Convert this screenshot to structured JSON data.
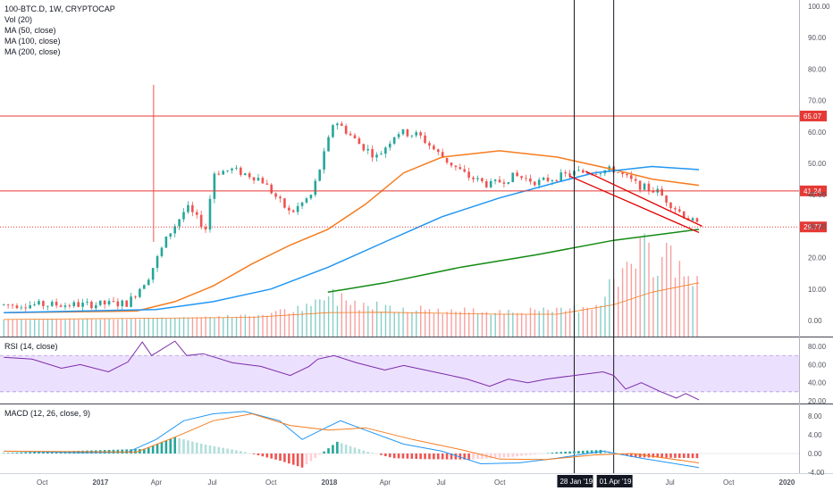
{
  "legend": {
    "title": "100-BTC.D, 1W, CRYPTOCAP",
    "vol": "Vol (20)",
    "ma50": "MA (50, close)",
    "ma100": "MA (100, close)",
    "ma200": "MA (200, close)"
  },
  "rsi_label": "RSI (14, close)",
  "macd_label": "MACD (12, 26, close, 9)",
  "colors": {
    "up": "#26a69a",
    "down": "#ef5350",
    "ma50": "#f57c1f",
    "ma100": "#2196f3",
    "ma200": "#138a13",
    "hline": "#e53935",
    "rsi": "#7b2ca8",
    "rsi_band": "#ece0ff",
    "macd": "#2196f3",
    "signal": "#f57c1f",
    "wedge": "#e10000"
  },
  "chart_data": [
    {
      "type": "candlestick",
      "title": "100-BTC.D, 1W, CRYPTOCAP",
      "ylim": [
        -2,
        101
      ],
      "y_ticks": [
        "100.00",
        "90.00",
        "80.00",
        "70.00",
        "60.00",
        "50.00",
        "40.00",
        "30.00",
        "20.00",
        "10.00",
        "0.00"
      ],
      "x_ticks": [
        "Oct",
        "2017",
        "Apr",
        "Jul",
        "Oct",
        "2018",
        "Apr",
        "Jul",
        "Oct",
        "2019",
        "Apr",
        "Jul",
        "Oct",
        "2020"
      ],
      "close_series": [
        {
          "x": "2016-08-01",
          "y": 5
        },
        {
          "x": "2016-12-01",
          "y": 5
        },
        {
          "x": "2017-02-15",
          "y": 5.5
        },
        {
          "x": "2017-03-20",
          "y": 14
        },
        {
          "x": "2017-04-20",
          "y": 27
        },
        {
          "x": "2017-05-20",
          "y": 36
        },
        {
          "x": "2017-06-20",
          "y": 29
        },
        {
          "x": "2017-07-01",
          "y": 47
        },
        {
          "x": "2017-08-01",
          "y": 48
        },
        {
          "x": "2017-09-15",
          "y": 45
        },
        {
          "x": "2017-11-01",
          "y": 34
        },
        {
          "x": "2017-12-05",
          "y": 40
        },
        {
          "x": "2017-12-30",
          "y": 56
        },
        {
          "x": "2018-01-10",
          "y": 64
        },
        {
          "x": "2018-02-20",
          "y": 56
        },
        {
          "x": "2018-03-20",
          "y": 52
        },
        {
          "x": "2018-04-20",
          "y": 60
        },
        {
          "x": "2018-05-25",
          "y": 59
        },
        {
          "x": "2018-07-01",
          "y": 52
        },
        {
          "x": "2018-08-10",
          "y": 46
        },
        {
          "x": "2018-09-15",
          "y": 43
        },
        {
          "x": "2018-10-25",
          "y": 46
        },
        {
          "x": "2018-12-01",
          "y": 44
        },
        {
          "x": "2019-01-28",
          "y": 47
        },
        {
          "x": "2019-04-01",
          "y": 48
        },
        {
          "x": "2019-05-10",
          "y": 43
        },
        {
          "x": "2019-06-10",
          "y": 41
        },
        {
          "x": "2019-07-01",
          "y": 37
        },
        {
          "x": "2019-07-25",
          "y": 33
        },
        {
          "x": "2019-08-15",
          "y": 30
        }
      ],
      "ma50": [
        {
          "x": "2016-08-01",
          "y": 2.5
        },
        {
          "x": "2017-03-01",
          "y": 3
        },
        {
          "x": "2017-05-01",
          "y": 6
        },
        {
          "x": "2017-07-01",
          "y": 11
        },
        {
          "x": "2017-09-01",
          "y": 18
        },
        {
          "x": "2017-11-01",
          "y": 24
        },
        {
          "x": "2017-12-31",
          "y": 29
        },
        {
          "x": "2018-03-01",
          "y": 37
        },
        {
          "x": "2018-05-01",
          "y": 47
        },
        {
          "x": "2018-07-01",
          "y": 52
        },
        {
          "x": "2018-10-01",
          "y": 54
        },
        {
          "x": "2019-01-01",
          "y": 52
        },
        {
          "x": "2019-04-01",
          "y": 48
        },
        {
          "x": "2019-06-01",
          "y": 45
        },
        {
          "x": "2019-08-15",
          "y": 43
        }
      ],
      "ma100": [
        {
          "x": "2016-08-01",
          "y": 2.5
        },
        {
          "x": "2017-04-01",
          "y": 3.5
        },
        {
          "x": "2017-07-01",
          "y": 6
        },
        {
          "x": "2017-10-01",
          "y": 10
        },
        {
          "x": "2018-01-01",
          "y": 17
        },
        {
          "x": "2018-04-01",
          "y": 25
        },
        {
          "x": "2018-07-01",
          "y": 33
        },
        {
          "x": "2018-10-01",
          "y": 39
        },
        {
          "x": "2019-01-01",
          "y": 44
        },
        {
          "x": "2019-03-01",
          "y": 47
        },
        {
          "x": "2019-06-01",
          "y": 49
        },
        {
          "x": "2019-08-15",
          "y": 48
        }
      ],
      "ma200": [
        {
          "x": "2017-12-31",
          "y": 9
        },
        {
          "x": "2018-04-01",
          "y": 12
        },
        {
          "x": "2018-08-01",
          "y": 17
        },
        {
          "x": "2018-12-01",
          "y": 21
        },
        {
          "x": "2019-04-01",
          "y": 25.5
        },
        {
          "x": "2019-08-15",
          "y": 29
        }
      ],
      "horizontal_lines": [
        {
          "value": 65.07,
          "label": "65.07",
          "style": "solid"
        },
        {
          "value": 41.24,
          "label": "41.24",
          "style": "solid"
        },
        {
          "value": 29.77,
          "label": "29.77",
          "style": "dotted"
        }
      ],
      "vertical_lines": [
        {
          "x": "2019-01-28",
          "label": "28 Jan '19"
        },
        {
          "x": "2019-04-01",
          "label": "01 Apr '19"
        }
      ],
      "wedge": {
        "upper": [
          {
            "x": "2019-02-15",
            "y": 47.5
          },
          {
            "x": "2019-08-20",
            "y": 30
          }
        ],
        "lower": [
          {
            "x": "2019-01-20",
            "y": 46
          },
          {
            "x": "2019-08-15",
            "y": 28
          }
        ]
      },
      "volume": [
        {
          "x": "2016-08-01",
          "y": 0.3
        },
        {
          "x": "2017-01-01",
          "y": 0.4
        },
        {
          "x": "2017-06-01",
          "y": 1
        },
        {
          "x": "2017-09-01",
          "y": 1.5
        },
        {
          "x": "2017-12-01",
          "y": 4
        },
        {
          "x": "2018-01-01",
          "y": 8
        },
        {
          "x": "2018-03-01",
          "y": 5
        },
        {
          "x": "2018-05-01",
          "y": 4
        },
        {
          "x": "2018-07-01",
          "y": 3
        },
        {
          "x": "2018-10-01",
          "y": 3
        },
        {
          "x": "2019-01-01",
          "y": 3
        },
        {
          "x": "2019-03-01",
          "y": 5
        },
        {
          "x": "2019-04-15",
          "y": 15
        },
        {
          "x": "2019-05-20",
          "y": 20
        },
        {
          "x": "2019-07-01",
          "y": 21
        },
        {
          "x": "2019-08-15",
          "y": 12
        }
      ],
      "volume_ma": [
        {
          "x": "2016-08-01",
          "y": 0.3
        },
        {
          "x": "2017-09-01",
          "y": 1
        },
        {
          "x": "2018-01-01",
          "y": 2.5
        },
        {
          "x": "2018-04-01",
          "y": 2.6
        },
        {
          "x": "2018-10-01",
          "y": 2
        },
        {
          "x": "2019-01-01",
          "y": 2
        },
        {
          "x": "2019-04-01",
          "y": 5
        },
        {
          "x": "2019-06-01",
          "y": 9
        },
        {
          "x": "2019-08-15",
          "y": 12
        }
      ]
    },
    {
      "type": "line",
      "title": "RSI (14, close)",
      "ylim": [
        17,
        90
      ],
      "y_ticks": [
        "80.00",
        "60.00",
        "40.00",
        "20.00"
      ],
      "band": [
        30,
        70
      ],
      "series": [
        {
          "x": "2016-08-01",
          "y": 68
        },
        {
          "x": "2016-09-15",
          "y": 66
        },
        {
          "x": "2016-11-01",
          "y": 56
        },
        {
          "x": "2016-12-01",
          "y": 60
        },
        {
          "x": "2017-01-15",
          "y": 52
        },
        {
          "x": "2017-02-15",
          "y": 63
        },
        {
          "x": "2017-03-10",
          "y": 85
        },
        {
          "x": "2017-03-25",
          "y": 70
        },
        {
          "x": "2017-05-01",
          "y": 86
        },
        {
          "x": "2017-05-20",
          "y": 70
        },
        {
          "x": "2017-06-15",
          "y": 72
        },
        {
          "x": "2017-08-01",
          "y": 62
        },
        {
          "x": "2017-09-15",
          "y": 58
        },
        {
          "x": "2017-11-01",
          "y": 48
        },
        {
          "x": "2017-12-01",
          "y": 58
        },
        {
          "x": "2017-12-15",
          "y": 66
        },
        {
          "x": "2018-01-10",
          "y": 70
        },
        {
          "x": "2018-02-15",
          "y": 62
        },
        {
          "x": "2018-04-01",
          "y": 54
        },
        {
          "x": "2018-05-01",
          "y": 59
        },
        {
          "x": "2018-07-01",
          "y": 50
        },
        {
          "x": "2018-08-10",
          "y": 44
        },
        {
          "x": "2018-09-15",
          "y": 36
        },
        {
          "x": "2018-10-15",
          "y": 44
        },
        {
          "x": "2018-11-15",
          "y": 40
        },
        {
          "x": "2018-12-15",
          "y": 44
        },
        {
          "x": "2019-01-28",
          "y": 48
        },
        {
          "x": "2019-03-15",
          "y": 52
        },
        {
          "x": "2019-04-01",
          "y": 48
        },
        {
          "x": "2019-04-20",
          "y": 33
        },
        {
          "x": "2019-05-15",
          "y": 40
        },
        {
          "x": "2019-06-15",
          "y": 30
        },
        {
          "x": "2019-07-10",
          "y": 23
        },
        {
          "x": "2019-07-25",
          "y": 28
        },
        {
          "x": "2019-08-15",
          "y": 21
        }
      ]
    },
    {
      "type": "line",
      "title": "MACD (12, 26, close, 9)",
      "ylim": [
        -4.2,
        10.5
      ],
      "y_ticks": [
        "8.00",
        "4.00",
        "0.00",
        "-4.00"
      ],
      "macd": [
        {
          "x": "2016-08-01",
          "y": 0.5
        },
        {
          "x": "2016-12-01",
          "y": 0.2
        },
        {
          "x": "2017-02-15",
          "y": 0.3
        },
        {
          "x": "2017-04-01",
          "y": 3
        },
        {
          "x": "2017-05-15",
          "y": 7
        },
        {
          "x": "2017-07-01",
          "y": 8.5
        },
        {
          "x": "2017-08-20",
          "y": 9
        },
        {
          "x": "2017-10-15",
          "y": 7
        },
        {
          "x": "2017-11-20",
          "y": 3
        },
        {
          "x": "2017-12-20",
          "y": 5
        },
        {
          "x": "2018-01-20",
          "y": 7
        },
        {
          "x": "2018-03-01",
          "y": 5
        },
        {
          "x": "2018-05-01",
          "y": 2
        },
        {
          "x": "2018-07-01",
          "y": 0.5
        },
        {
          "x": "2018-09-01",
          "y": -2.2
        },
        {
          "x": "2018-11-01",
          "y": -2
        },
        {
          "x": "2019-01-01",
          "y": -1
        },
        {
          "x": "2019-03-15",
          "y": 0.5
        },
        {
          "x": "2019-05-15",
          "y": -1
        },
        {
          "x": "2019-08-15",
          "y": -3
        }
      ],
      "signal": [
        {
          "x": "2016-08-01",
          "y": 0.5
        },
        {
          "x": "2017-03-01",
          "y": 0.3
        },
        {
          "x": "2017-05-01",
          "y": 3.5
        },
        {
          "x": "2017-07-01",
          "y": 7
        },
        {
          "x": "2017-09-01",
          "y": 8.5
        },
        {
          "x": "2017-11-01",
          "y": 6
        },
        {
          "x": "2018-01-01",
          "y": 5
        },
        {
          "x": "2018-03-01",
          "y": 5.5
        },
        {
          "x": "2018-05-15",
          "y": 3
        },
        {
          "x": "2018-08-01",
          "y": 0.8
        },
        {
          "x": "2018-10-01",
          "y": -1.2
        },
        {
          "x": "2018-12-15",
          "y": -1.3
        },
        {
          "x": "2019-03-01",
          "y": -0.3
        },
        {
          "x": "2019-05-01",
          "y": 0
        },
        {
          "x": "2019-08-15",
          "y": -2
        }
      ],
      "histogram": [
        {
          "x": "2016-08-01",
          "y": 0.1
        },
        {
          "x": "2017-03-15",
          "y": 1
        },
        {
          "x": "2017-05-01",
          "y": 3.5
        },
        {
          "x": "2017-06-15",
          "y": 2
        },
        {
          "x": "2017-08-15",
          "y": 0.5
        },
        {
          "x": "2017-10-15",
          "y": -1.5
        },
        {
          "x": "2017-11-20",
          "y": -3
        },
        {
          "x": "2018-01-15",
          "y": 2.5
        },
        {
          "x": "2018-03-01",
          "y": 0.5
        },
        {
          "x": "2018-04-15",
          "y": -1
        },
        {
          "x": "2018-06-01",
          "y": -1.2
        },
        {
          "x": "2018-08-15",
          "y": -1.3
        },
        {
          "x": "2018-10-15",
          "y": -0.8
        },
        {
          "x": "2019-01-01",
          "y": 0.3
        },
        {
          "x": "2019-03-15",
          "y": 0.8
        },
        {
          "x": "2019-05-01",
          "y": -0.8
        },
        {
          "x": "2019-08-15",
          "y": -1
        }
      ],
      "x_ticks": [
        "Oct",
        "2017",
        "Apr",
        "Jul",
        "Oct",
        "2018",
        "Apr",
        "Jul",
        "Oct",
        "2019",
        "Apr",
        "Jul",
        "Oct",
        "2020"
      ]
    }
  ],
  "x_tick_dates": {
    "Oct": [
      "2016-10-01",
      "2017-10-01",
      "2018-10-01",
      "2019-10-01"
    ],
    "2017": "2017-01-01",
    "Apr": [
      "2017-04-01",
      "2018-04-01"
    ],
    "Jul": [
      "2017-07-01",
      "2018-07-01",
      "2019-07-01"
    ],
    "2018": "2018-01-01",
    "2020": "2020-01-01"
  }
}
